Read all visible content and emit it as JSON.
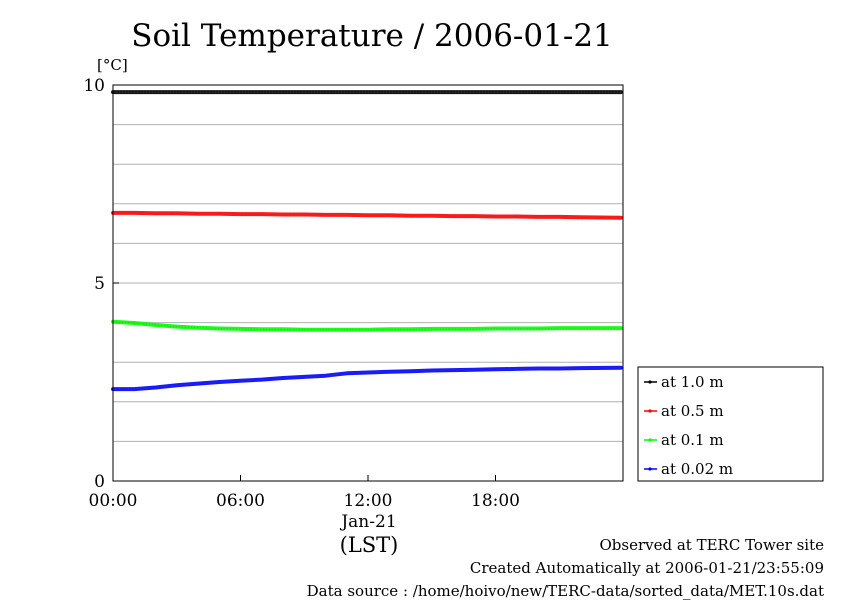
{
  "chart_data": {
    "type": "line",
    "title": "Soil Temperature / 2006-01-21",
    "ylabel": "[°C]",
    "xlabel": "(LST)",
    "date_label": "Jan-21",
    "x_unit": "hours",
    "xlim": [
      0,
      24
    ],
    "ylim": [
      0,
      10
    ],
    "x_ticks": [
      {
        "value": 0,
        "label": "00:00"
      },
      {
        "value": 6,
        "label": "06:00"
      },
      {
        "value": 12,
        "label": "12:00"
      },
      {
        "value": 18,
        "label": "18:00"
      }
    ],
    "y_ticks": [
      {
        "value": 0,
        "label": "0"
      },
      {
        "value": 5,
        "label": "5"
      },
      {
        "value": 10,
        "label": "10"
      }
    ],
    "y_gridlines": [
      1,
      2,
      3,
      4,
      5,
      6,
      7,
      8,
      9,
      10
    ],
    "legend_position": "right",
    "x": [
      0,
      1,
      2,
      3,
      4,
      5,
      6,
      7,
      8,
      9,
      10,
      11,
      12,
      13,
      14,
      15,
      16,
      17,
      18,
      19,
      20,
      21,
      22,
      23.9
    ],
    "series": [
      {
        "name": "at 1.0 m",
        "color": "#000000",
        "values": [
          9.82,
          9.82,
          9.82,
          9.82,
          9.82,
          9.82,
          9.82,
          9.82,
          9.82,
          9.82,
          9.82,
          9.82,
          9.82,
          9.82,
          9.82,
          9.82,
          9.82,
          9.82,
          9.82,
          9.82,
          9.82,
          9.82,
          9.82,
          9.82
        ]
      },
      {
        "name": "at 0.5 m",
        "color": "#ff0000",
        "values": [
          6.77,
          6.77,
          6.76,
          6.76,
          6.75,
          6.75,
          6.74,
          6.74,
          6.73,
          6.73,
          6.72,
          6.72,
          6.71,
          6.71,
          6.7,
          6.7,
          6.69,
          6.69,
          6.68,
          6.68,
          6.67,
          6.67,
          6.66,
          6.65
        ]
      },
      {
        "name": "at 0.1 m",
        "color": "#00ff00",
        "values": [
          4.02,
          3.99,
          3.94,
          3.9,
          3.87,
          3.85,
          3.84,
          3.83,
          3.83,
          3.82,
          3.82,
          3.82,
          3.82,
          3.83,
          3.83,
          3.84,
          3.84,
          3.84,
          3.85,
          3.85,
          3.85,
          3.86,
          3.86,
          3.86
        ]
      },
      {
        "name": "at 0.02 m",
        "color": "#0000ff",
        "values": [
          2.32,
          2.32,
          2.36,
          2.42,
          2.46,
          2.5,
          2.53,
          2.56,
          2.6,
          2.63,
          2.66,
          2.72,
          2.74,
          2.76,
          2.77,
          2.79,
          2.8,
          2.81,
          2.82,
          2.83,
          2.84,
          2.84,
          2.85,
          2.86
        ]
      }
    ]
  },
  "footer": {
    "line1": "Observed at TERC Tower site",
    "line2": "Created Automatically at 2006-01-21/23:55:09",
    "line3": "Data source : /home/hoivo/new/TERC-data/sorted_data/MET.10s.dat"
  }
}
